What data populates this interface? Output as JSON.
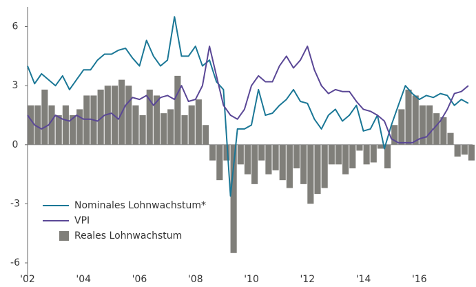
{
  "chart_data": {
    "type": "combo",
    "x": [
      2002,
      2002.25,
      2002.5,
      2002.75,
      2003,
      2003.25,
      2003.5,
      2003.75,
      2004,
      2004.25,
      2004.5,
      2004.75,
      2005,
      2005.25,
      2005.5,
      2005.75,
      2006,
      2006.25,
      2006.5,
      2006.75,
      2007,
      2007.25,
      2007.5,
      2007.75,
      2008,
      2008.25,
      2008.5,
      2008.75,
      2009,
      2009.25,
      2009.5,
      2009.75,
      2010,
      2010.25,
      2010.5,
      2010.75,
      2011,
      2011.25,
      2011.5,
      2011.75,
      2012,
      2012.25,
      2012.5,
      2012.75,
      2013,
      2013.25,
      2013.5,
      2013.75,
      2014,
      2014.25,
      2014.5,
      2014.75,
      2015,
      2015.25,
      2015.5,
      2015.75,
      2016,
      2016.25,
      2016.5,
      2016.75,
      2017,
      2017.25,
      2017.5,
      2017.75
    ],
    "series": [
      {
        "name": "Reales Lohnwachstum",
        "kind": "bar",
        "color": "#807f7a",
        "values": [
          2.0,
          2.0,
          2.8,
          2.0,
          1.5,
          2.0,
          1.5,
          1.8,
          2.5,
          2.5,
          2.8,
          3.0,
          3.0,
          3.3,
          3.0,
          2.0,
          1.5,
          2.8,
          2.5,
          1.6,
          1.8,
          3.5,
          1.5,
          2.0,
          2.3,
          1.0,
          -0.8,
          -1.8,
          -0.8,
          -5.5,
          -1.0,
          -1.5,
          -2.0,
          -0.8,
          -1.5,
          -1.3,
          -1.8,
          -2.2,
          -1.2,
          -2.0,
          -3.0,
          -2.5,
          -2.2,
          -1.0,
          -1.0,
          -1.5,
          -1.2,
          -0.3,
          -1.0,
          -0.9,
          -0.2,
          -1.2,
          1.0,
          1.8,
          2.8,
          2.5,
          2.0,
          2.0,
          1.6,
          1.4,
          0.6,
          -0.6,
          -0.5,
          -0.8
        ]
      },
      {
        "name": "Nominales Lohnwachstum*",
        "kind": "line",
        "color": "#1a7796",
        "values": [
          4.0,
          3.1,
          3.6,
          3.3,
          3.0,
          3.5,
          2.8,
          3.3,
          3.8,
          3.8,
          4.3,
          4.6,
          4.6,
          4.8,
          4.9,
          4.4,
          4.0,
          5.3,
          4.5,
          4.0,
          4.3,
          6.5,
          4.5,
          4.5,
          5.0,
          4.0,
          4.3,
          3.2,
          2.8,
          -2.6,
          0.8,
          0.8,
          1.0,
          2.8,
          1.5,
          1.6,
          2.0,
          2.3,
          2.8,
          2.2,
          2.1,
          1.3,
          0.8,
          1.5,
          1.8,
          1.2,
          1.5,
          2.0,
          0.7,
          0.8,
          1.5,
          -0.2,
          1.0,
          2.0,
          3.0,
          2.6,
          2.3,
          2.5,
          2.4,
          2.6,
          2.5,
          2.0,
          2.3,
          2.1
        ]
      },
      {
        "name": "VPI",
        "kind": "line",
        "color": "#5a4796",
        "values": [
          1.5,
          1.0,
          0.8,
          1.0,
          1.5,
          1.3,
          1.2,
          1.5,
          1.3,
          1.3,
          1.2,
          1.5,
          1.6,
          1.3,
          2.0,
          2.4,
          2.3,
          2.5,
          2.0,
          2.4,
          2.5,
          2.3,
          3.0,
          2.2,
          2.3,
          3.0,
          5.0,
          3.5,
          2.0,
          1.5,
          1.3,
          1.8,
          3.0,
          3.5,
          3.2,
          3.2,
          4.0,
          4.5,
          3.9,
          4.3,
          5.0,
          3.8,
          3.0,
          2.6,
          2.8,
          2.7,
          2.7,
          2.2,
          1.8,
          1.7,
          1.5,
          1.2,
          0.3,
          0.1,
          0.1,
          0.1,
          0.3,
          0.4,
          0.8,
          1.2,
          1.8,
          2.6,
          2.7,
          3.0
        ]
      }
    ],
    "xlim": [
      2002,
      2017.9
    ],
    "xticks": [
      {
        "value": 2002,
        "label": "'02"
      },
      {
        "value": 2004,
        "label": "'04"
      },
      {
        "value": 2006,
        "label": "'06"
      },
      {
        "value": 2008,
        "label": "'08"
      },
      {
        "value": 2010,
        "label": "'10"
      },
      {
        "value": 2012,
        "label": "'12"
      },
      {
        "value": 2014,
        "label": "'14"
      },
      {
        "value": 2016,
        "label": "'16"
      }
    ],
    "ylim": [
      -6.7,
      7.0
    ],
    "yticks": [
      -6,
      -3,
      0,
      3,
      6
    ]
  }
}
